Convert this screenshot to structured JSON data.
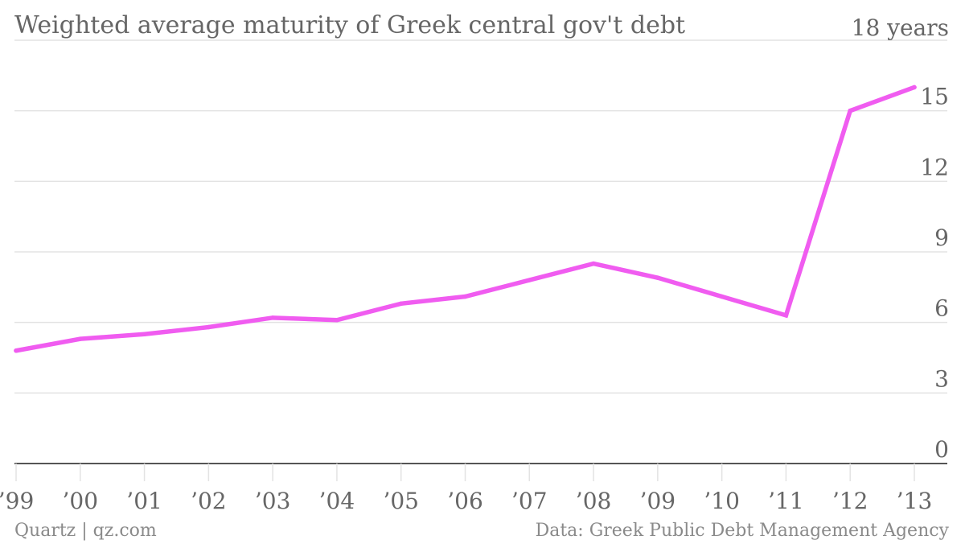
{
  "chart_data": {
    "type": "line",
    "title": "Weighted average maturity of Greek central gov't debt",
    "y_top_label": "18 years",
    "xlabel": "",
    "ylabel": "",
    "categories": [
      "’99",
      "’00",
      "’01",
      "’02",
      "’03",
      "’04",
      "’05",
      "’06",
      "’07",
      "’08",
      "’09",
      "’10",
      "’11",
      "’12",
      "’13"
    ],
    "y_ticks": [
      "0",
      "3",
      "6",
      "9",
      "12",
      "15"
    ],
    "ylim": [
      0,
      18
    ],
    "grid": true,
    "series": [
      {
        "values": [
          4.8,
          5.3,
          5.5,
          5.8,
          6.2,
          6.1,
          6.8,
          7.1,
          7.8,
          8.5,
          7.9,
          7.1,
          6.3,
          15.0,
          16.0
        ],
        "color": "#f05cf0"
      }
    ]
  },
  "footer": {
    "credit": "Quartz | qz.com",
    "source": "Data: Greek Public Debt Management Agency"
  },
  "colors": {
    "line": "#f05cf0",
    "grid": "#e3e3e3",
    "axis": "#555555",
    "text": "#666666"
  }
}
